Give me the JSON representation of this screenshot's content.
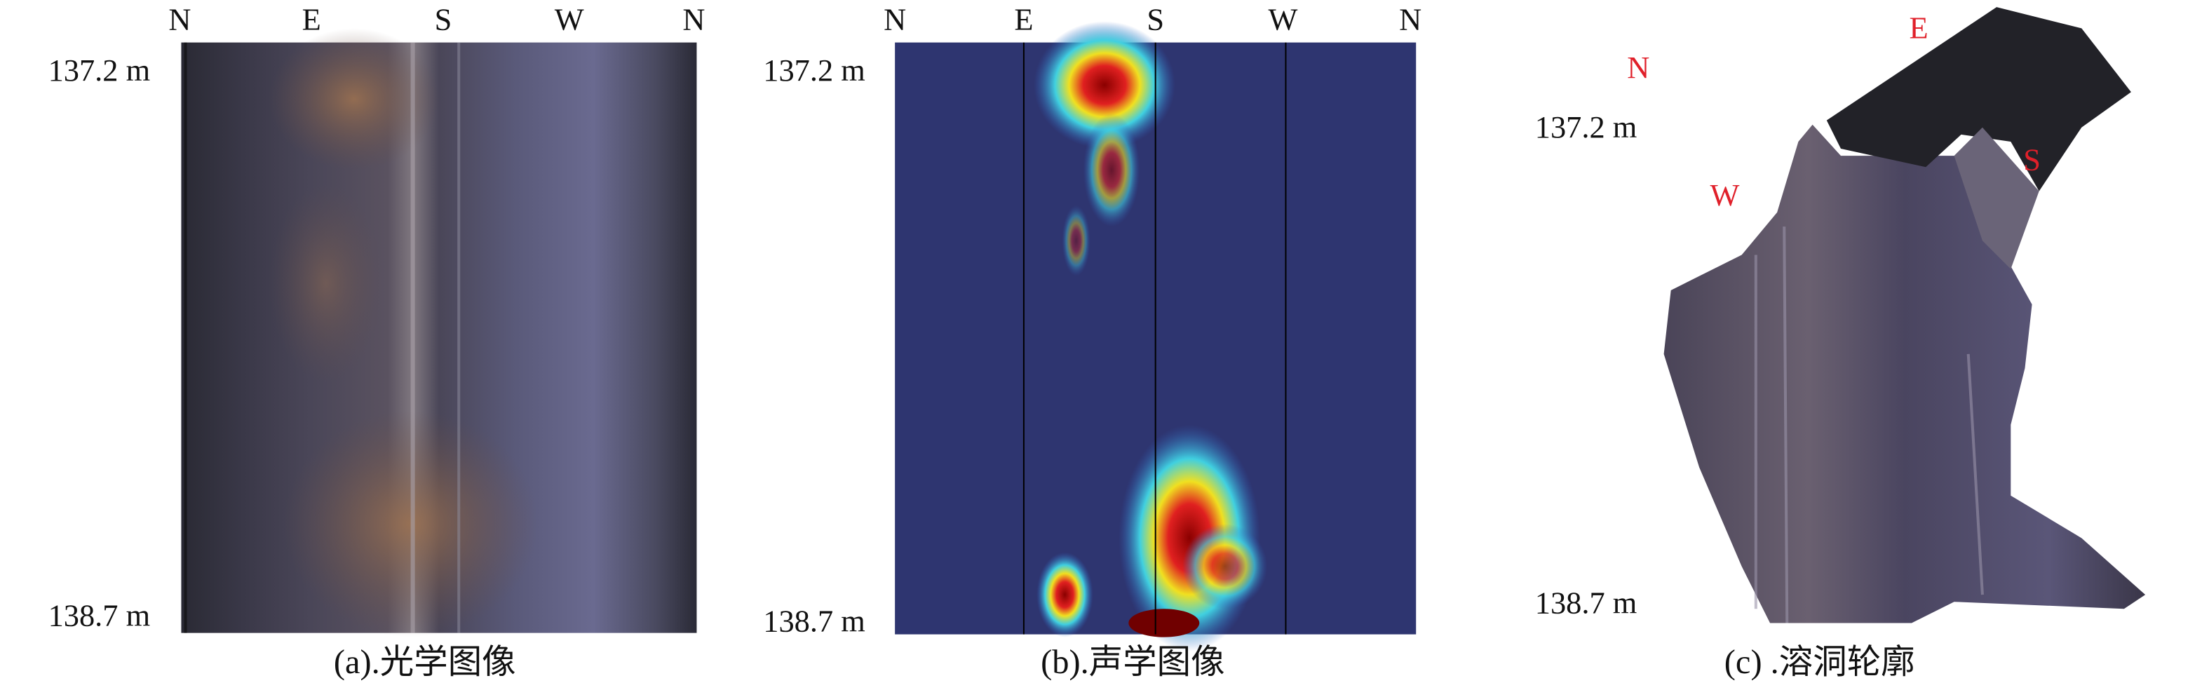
{
  "panels": [
    {
      "compass": [
        "N",
        "E",
        "S",
        "W",
        "N"
      ],
      "depths": [
        "137.2 m",
        "138.7 m"
      ],
      "caption": "(a).光学图像"
    },
    {
      "compass": [
        "N",
        "E",
        "S",
        "W",
        "N"
      ],
      "depths": [
        "137.2 m",
        "138.7 m"
      ],
      "caption": "(b).声学图像"
    },
    {
      "directions": [
        "N",
        "E",
        "S",
        "W"
      ],
      "depths": [
        "137.2 m",
        "138.7 m"
      ],
      "caption": "(c) .溶洞轮廓"
    }
  ]
}
